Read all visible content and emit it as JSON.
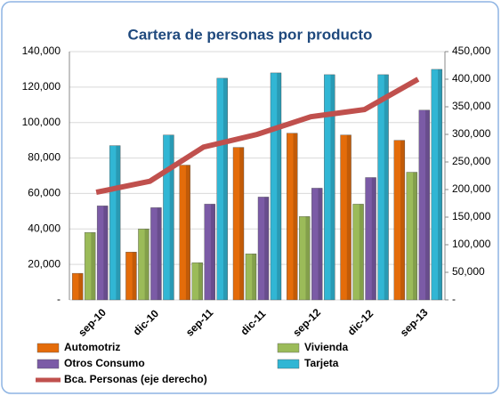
{
  "chart_data": {
    "type": "bar-line",
    "title": "Cartera de personas por producto",
    "categories": [
      "sep-10",
      "dic-10",
      "sep-11",
      "dic-11",
      "sep-12",
      "dic-12",
      "sep-13"
    ],
    "series": [
      {
        "name": "Automotriz",
        "color": "#e46c0a",
        "values": [
          15000,
          27000,
          76000,
          86000,
          94000,
          93000,
          90000
        ]
      },
      {
        "name": "Vivienda",
        "color": "#9bbb59",
        "values": [
          38000,
          40000,
          21000,
          26000,
          47000,
          54000,
          72000
        ]
      },
      {
        "name": "Otros Consumo",
        "color": "#7b5ba6",
        "values": [
          53000,
          52000,
          54000,
          58000,
          63000,
          69000,
          107000
        ]
      },
      {
        "name": "Tarjeta",
        "color": "#31b6d4",
        "values": [
          87000,
          93000,
          125000,
          128000,
          127000,
          127000,
          130000
        ]
      },
      {
        "name": "Bca. Personas (eje derecho)",
        "color": "#c0504d",
        "axis": "y2",
        "values": [
          195000,
          215000,
          277000,
          300000,
          332000,
          345000,
          400000
        ]
      }
    ],
    "ylim": [
      0,
      140000
    ],
    "yticks": [
      {
        "value": 0,
        "label": "-"
      },
      {
        "value": 20000,
        "label": "20,000"
      },
      {
        "value": 40000,
        "label": "40,000"
      },
      {
        "value": 60000,
        "label": "60,000"
      },
      {
        "value": 80000,
        "label": "80,000"
      },
      {
        "value": 100000,
        "label": "100,000"
      },
      {
        "value": 120000,
        "label": "120,000"
      },
      {
        "value": 140000,
        "label": "140,000"
      }
    ],
    "y2lim": [
      0,
      450000
    ],
    "y2ticks": [
      {
        "value": 0,
        "label": "-"
      },
      {
        "value": 50000,
        "label": "50,000"
      },
      {
        "value": 100000,
        "label": "100,000"
      },
      {
        "value": 150000,
        "label": "150,000"
      },
      {
        "value": 200000,
        "label": "200,000"
      },
      {
        "value": 250000,
        "label": "250,000"
      },
      {
        "value": 300000,
        "label": "300,000"
      },
      {
        "value": 350000,
        "label": "350,000"
      },
      {
        "value": 400000,
        "label": "400,000"
      },
      {
        "value": 450000,
        "label": "450,000"
      }
    ],
    "grid": true
  }
}
